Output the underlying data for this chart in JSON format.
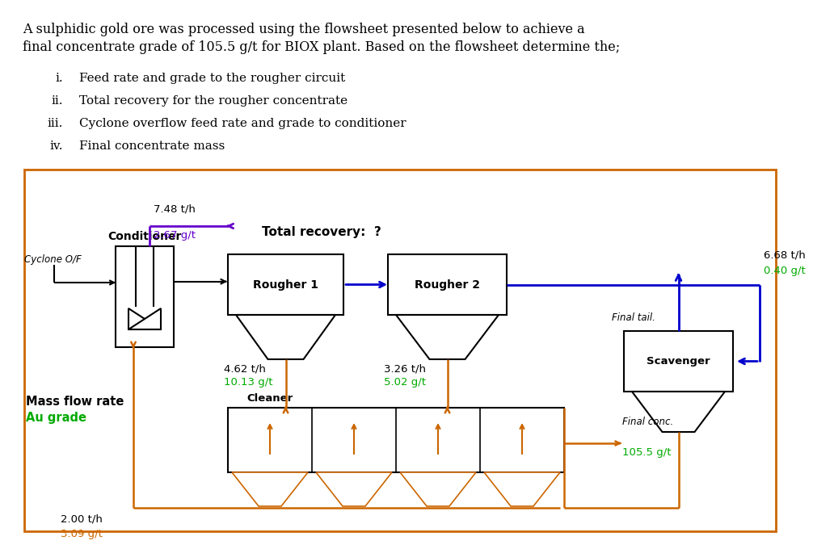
{
  "bg_color": "#ffffff",
  "text_color": "#000000",
  "green_color": "#00aa00",
  "orange_color": "#cc6600",
  "blue_color": "#0000cc",
  "purple_color": "#6600cc",
  "line1": "A sulphidic gold ore was processed using the flowsheet presented below to achieve a",
  "line2": "final concentrate grade of 105.5 g/t for BIOX plant. Based on the flowsheet determine the;",
  "list_labels": [
    "i.",
    "ii.",
    "iii.",
    "iv."
  ],
  "list_items": [
    "Feed rate and grade to the rougher circuit",
    "Total recovery for the rougher concentrate",
    "Cyclone overflow feed rate and grade to conditioner",
    "Final concentrate mass"
  ],
  "annotations": {
    "cyclone_of": "Cyclone O/F",
    "conditioner_label": "Conditioner",
    "total_recovery": "Total recovery:  ?",
    "mass_flow": "Mass flow rate",
    "au_grade": "Au grade",
    "r1_label": "Rougher 1",
    "r2_label": "Rougher 2",
    "sc_label": "Scavenger",
    "cl_label": "Cleaner",
    "r1_mass": "4.62 t/h",
    "r1_grade": "10.13 g/t",
    "r2_mass": "3.26 t/h",
    "r2_grade": "5.02 g/t",
    "tail_mass": "6.68 t/h",
    "tail_grade": "0.40 g/t",
    "final_tail": "Final tail.",
    "feed_mass1": "7.48 t/h",
    "feed_grade1": "2.67 g/t",
    "feed_mass2": "2.00 t/h",
    "feed_grade2": "3.09 g/t",
    "final_conc_label": "Final conc.",
    "final_conc_grade": "105.5 g/t"
  }
}
